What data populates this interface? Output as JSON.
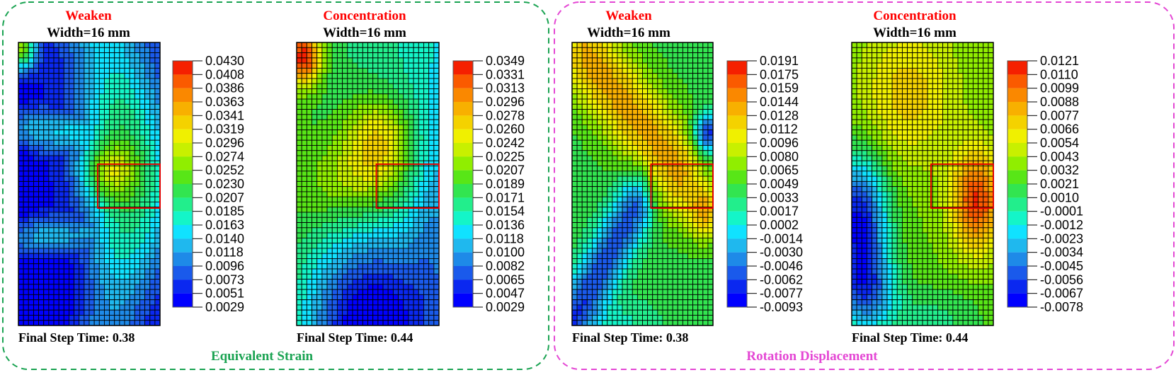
{
  "groups": [
    {
      "name": "equivalent-strain",
      "label": "Equivalent Strain",
      "color": "#1aa352"
    },
    {
      "name": "rotation-displacement",
      "label": "Rotation Displacement",
      "color": "#e447d4"
    }
  ],
  "colormap": [
    "#0000ff",
    "#0a28f0",
    "#1a5aeb",
    "#1e8ae8",
    "#1fb8ee",
    "#10e2ff",
    "#14f5c8",
    "#22ee8c",
    "#32e550",
    "#58e617",
    "#90ee00",
    "#c8f000",
    "#f0f000",
    "#f4d200",
    "#f8b000",
    "#fa8800",
    "#fa5a00",
    "#f52000"
  ],
  "panels": [
    {
      "id": "strain-weaken",
      "title": "Weaken",
      "width_label": "Width=16 mm",
      "footer": "Final Step Time: 0.38",
      "legend": [
        "0.0430",
        "0.0408",
        "0.0386",
        "0.0363",
        "0.0341",
        "0.0319",
        "0.0296",
        "0.0274",
        "0.0252",
        "0.0230",
        "0.0207",
        "0.0185",
        "0.0163",
        "0.0140",
        "0.0118",
        "0.0096",
        "0.0073",
        "0.0051",
        "0.0029"
      ]
    },
    {
      "id": "strain-concentration",
      "title": "Concentration",
      "width_label": "Width=16 mm",
      "footer": "Final Step Time: 0.44",
      "legend": [
        "0.0349",
        "0.0331",
        "0.0313",
        "0.0296",
        "0.0278",
        "0.0260",
        "0.0242",
        "0.0225",
        "0.0207",
        "0.0189",
        "0.0171",
        "0.0154",
        "0.0136",
        "0.0118",
        "0.0100",
        "0.0082",
        "0.0065",
        "0.0047",
        "0.0029"
      ]
    },
    {
      "id": "rotation-weaken",
      "title": "Weaken",
      "width_label": "Width=16 mm",
      "footer": "Final Step Time: 0.38",
      "legend": [
        "0.0191",
        "0.0175",
        "0.0159",
        "0.0144",
        "0.0128",
        "0.0112",
        "0.0096",
        "0.0080",
        "0.0065",
        "0.0049",
        "0.0033",
        "0.0017",
        "0.0002",
        "-0.0014",
        "-0.0030",
        "-0.0046",
        "-0.0062",
        "-0.0077",
        "-0.0093"
      ]
    },
    {
      "id": "rotation-concentration",
      "title": "Concentration",
      "width_label": "Width=16 mm",
      "footer": "Final Step Time: 0.44",
      "legend": [
        "0.0121",
        "0.0110",
        "0.0099",
        "0.0088",
        "0.0077",
        "0.0066",
        "0.0054",
        "0.0043",
        "0.0032",
        "0.0021",
        "0.0010",
        "-0.0001",
        "-0.0012",
        "-0.0023",
        "-0.0034",
        "-0.0045",
        "-0.0056",
        "-0.0067",
        "-0.0078"
      ]
    }
  ]
}
